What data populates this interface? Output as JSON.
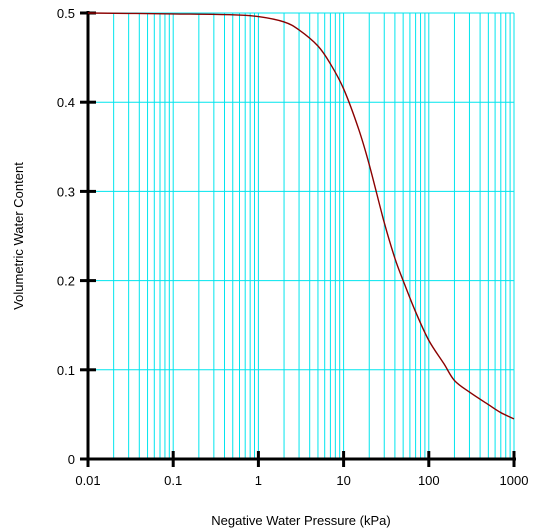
{
  "chart_data": {
    "type": "line",
    "title": "",
    "xlabel": "Negative Water Pressure (kPa)",
    "ylabel": "Volumetric Water Content",
    "x_scale": "log",
    "xlim": [
      0.01,
      1000
    ],
    "ylim": [
      0,
      0.5
    ],
    "x_ticks": [
      "0.01",
      "0.1",
      "1",
      "10",
      "100",
      "1000"
    ],
    "y_ticks": [
      "0",
      "0.1",
      "0.2",
      "0.3",
      "0.4",
      "0.5"
    ],
    "grid": true,
    "legend": "none",
    "series": [
      {
        "x": [
          0.01,
          0.1,
          0.5,
          1,
          2,
          3,
          5,
          7,
          10,
          15,
          20,
          30,
          40,
          50,
          70,
          100,
          150,
          200,
          300,
          500,
          700,
          1000
        ],
        "y": [
          0.5,
          0.499,
          0.498,
          0.496,
          0.49,
          0.481,
          0.463,
          0.443,
          0.415,
          0.37,
          0.33,
          0.265,
          0.225,
          0.2,
          0.165,
          0.133,
          0.107,
          0.088,
          0.075,
          0.061,
          0.052,
          0.045
        ]
      }
    ],
    "colors": {
      "grid": "#00e5ee",
      "axis": "#000000",
      "series": "#8b0000"
    }
  }
}
